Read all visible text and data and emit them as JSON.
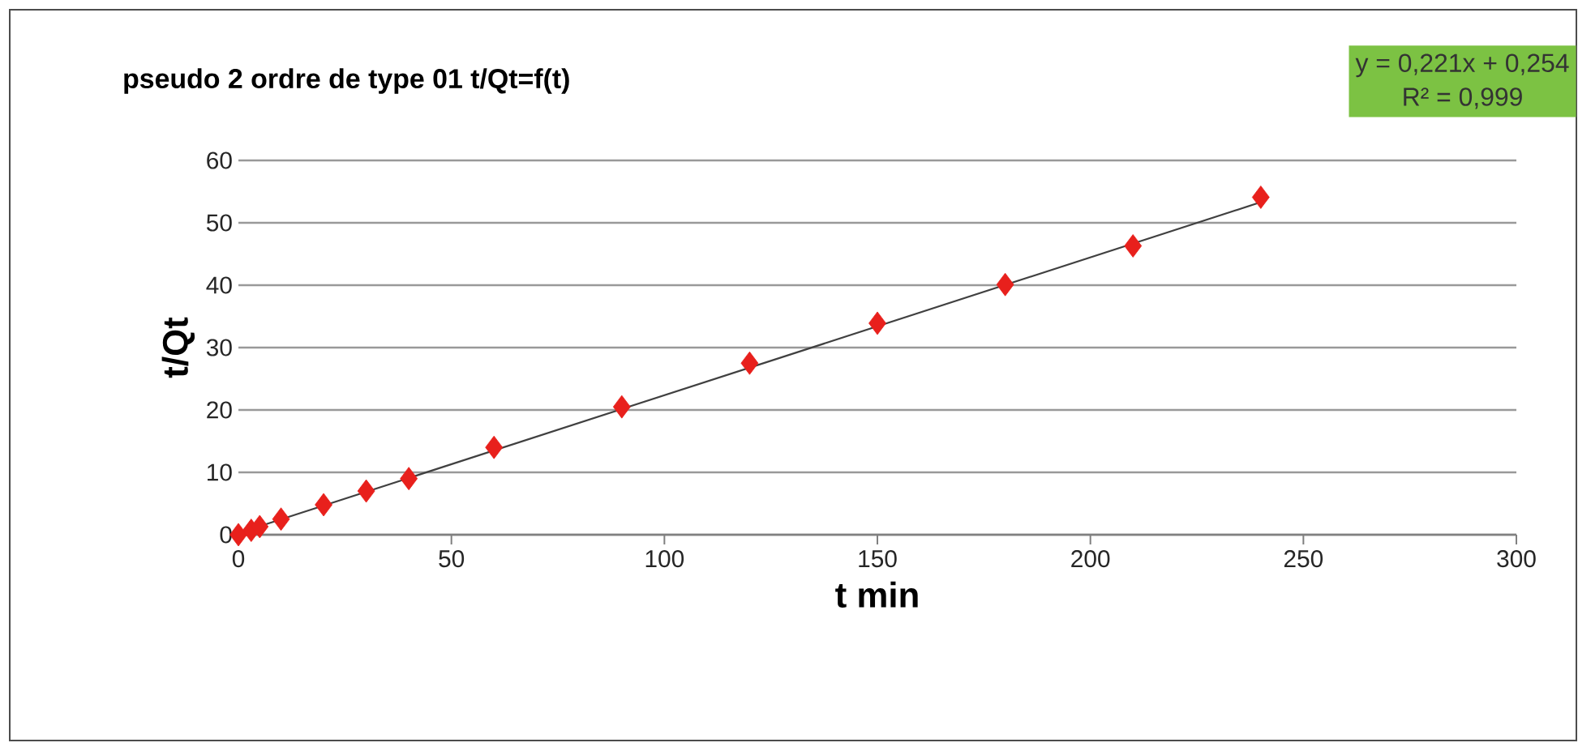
{
  "chart_data": {
    "type": "scatter",
    "title": "pseudo 2 ordre de type 01 t/Qt=f(t)",
    "xlabel": "t min",
    "ylabel": "t/Qt",
    "annotations": [
      "y = 0,221x + 0,254",
      "R² = 0,999"
    ],
    "x": [
      0,
      3,
      5,
      10,
      20,
      30,
      40,
      60,
      90,
      120,
      150,
      180,
      210,
      240
    ],
    "series": [
      {
        "color": "#e8201c",
        "marker": "diamond",
        "values": [
          0,
          0.7,
          1.3,
          2.5,
          4.8,
          7,
          9,
          14,
          20.5,
          27.5,
          33.9,
          40.1,
          46.3,
          54.1
        ]
      },
      {
        "type": "line",
        "color": "#404040",
        "marker": "none",
        "x": [
          0,
          240
        ],
        "values": [
          0.25,
          53.3
        ]
      }
    ],
    "grid": "y",
    "xlim": [
      0,
      300
    ],
    "ylim": [
      0,
      60
    ],
    "xticks": [
      0,
      50,
      100,
      150,
      200,
      250,
      300
    ],
    "yticks": [
      0,
      10,
      20,
      30,
      40,
      50,
      60
    ]
  }
}
